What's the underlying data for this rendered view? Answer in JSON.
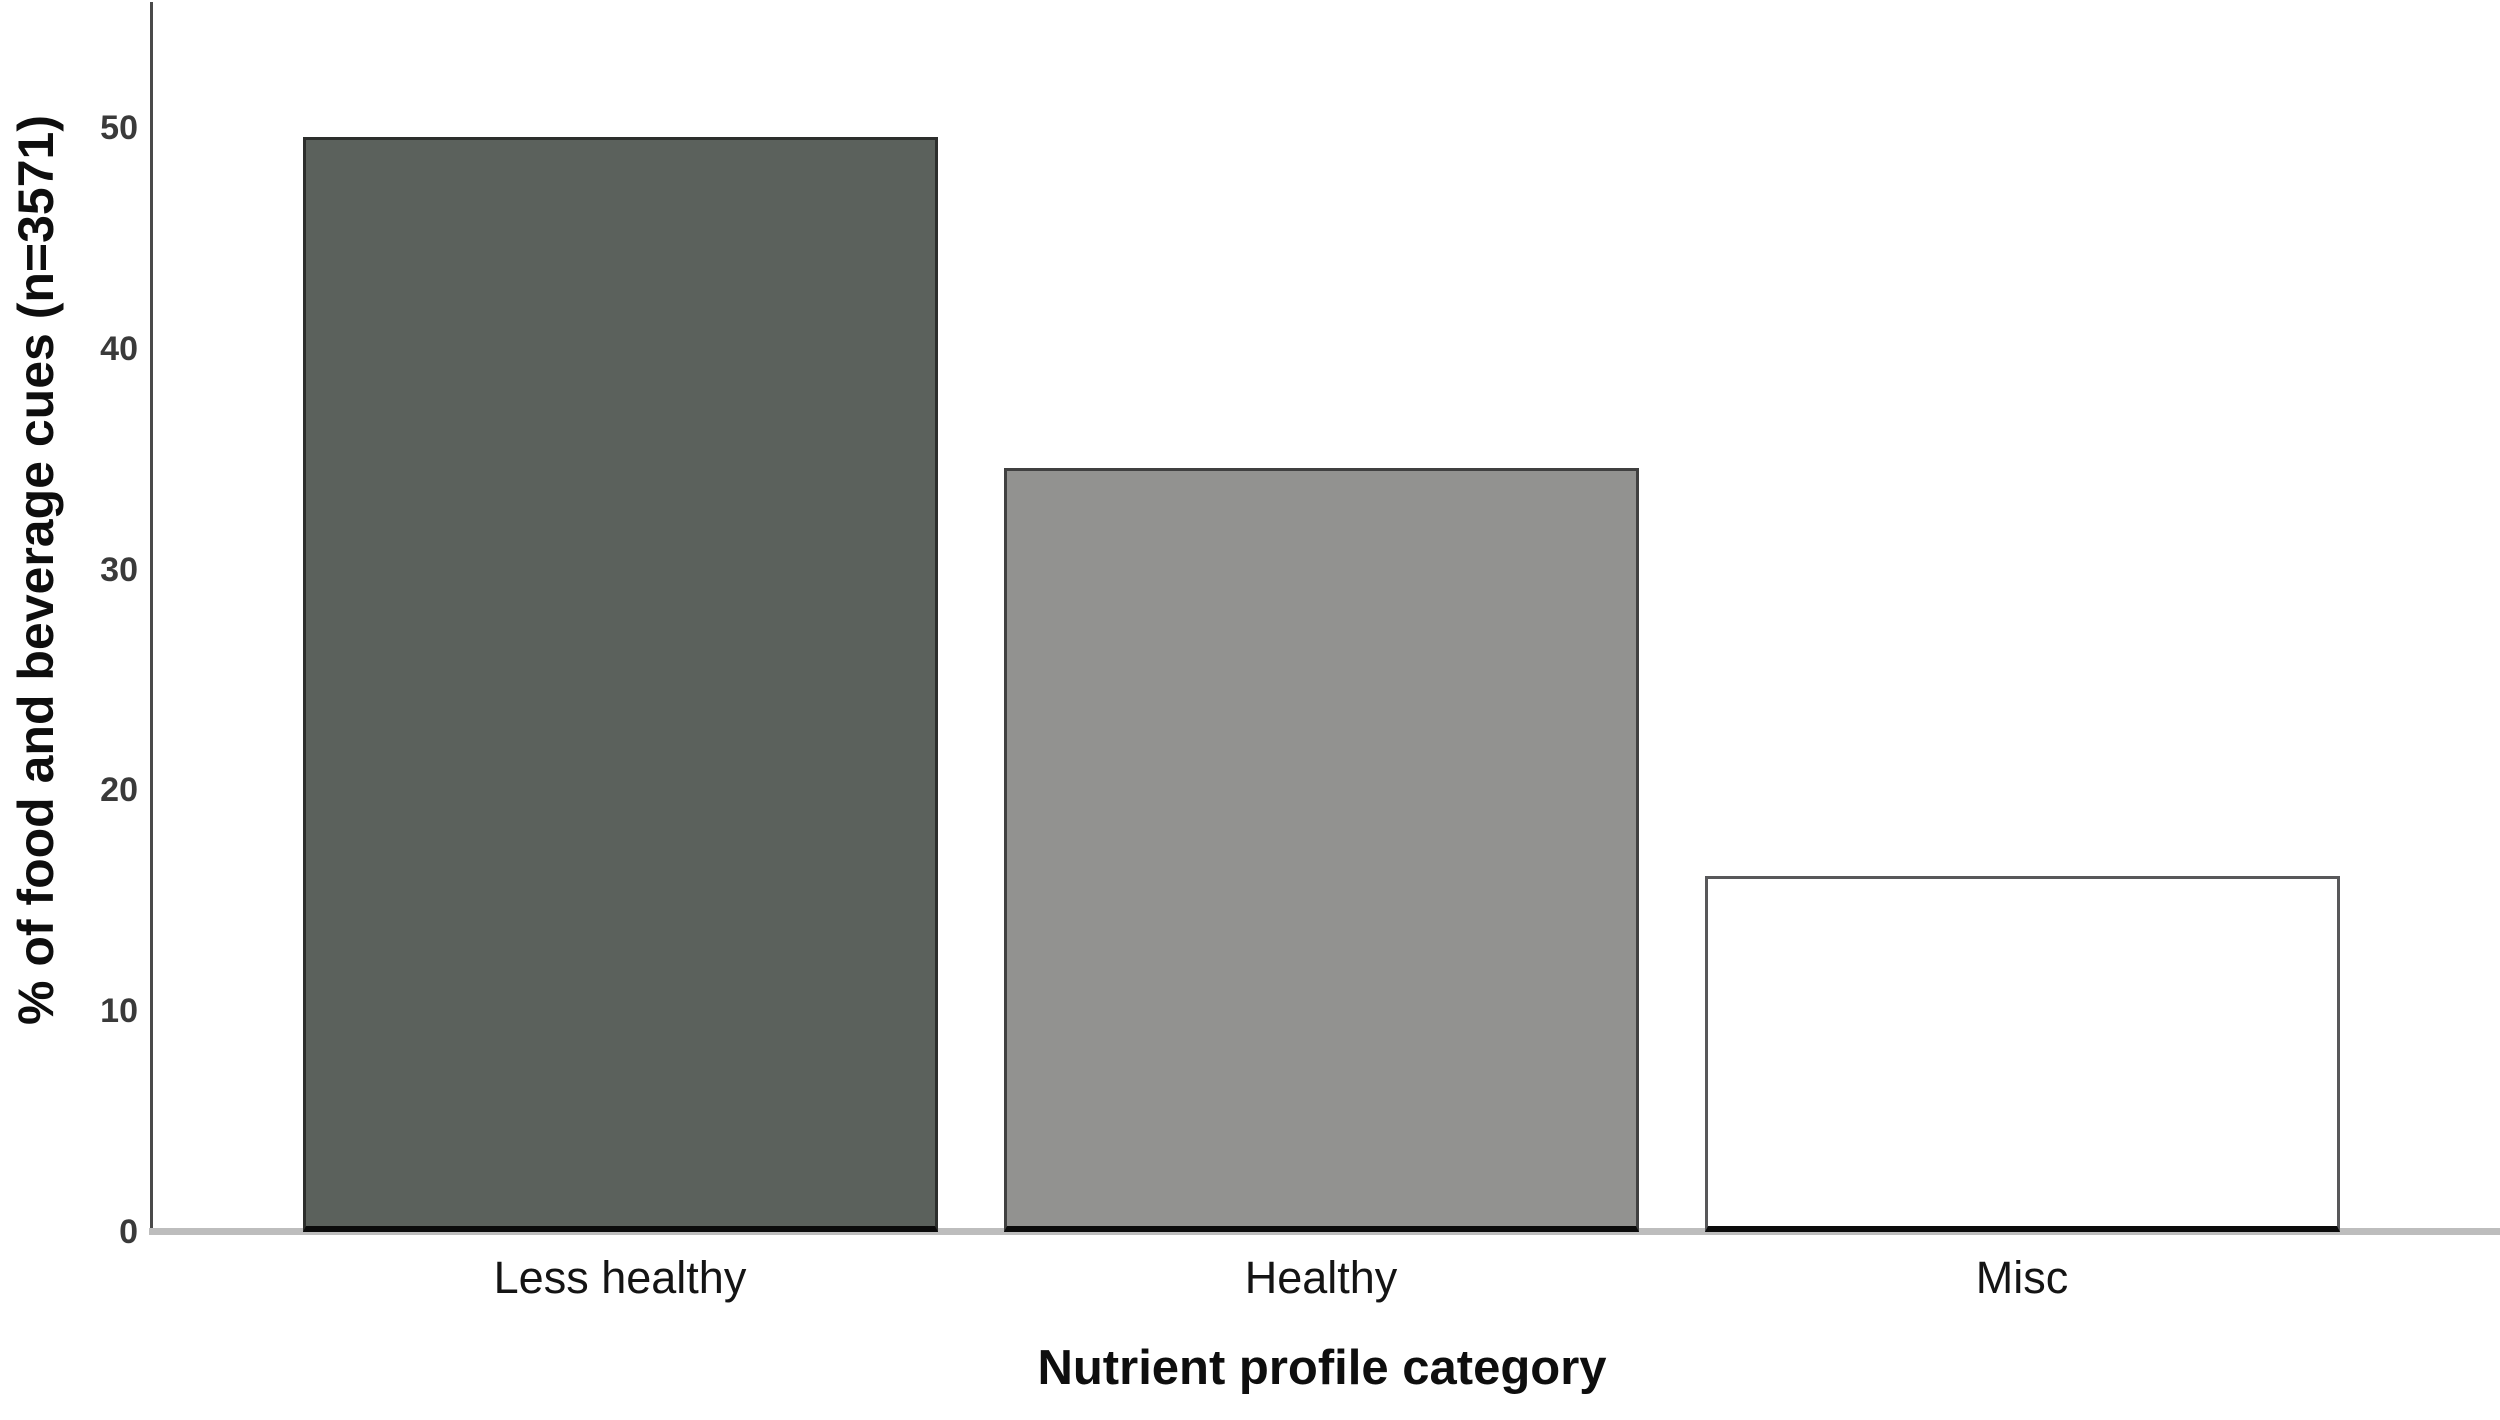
{
  "chart_data": {
    "type": "bar",
    "title": "",
    "xlabel": "Nutrient profile category",
    "ylabel": "% of food and beverage cues (n=3571)",
    "categories": [
      "Less healthy",
      "Healthy",
      "Misc"
    ],
    "values": [
      49.6,
      34.6,
      16.1
    ],
    "yticks": [
      0,
      10,
      20,
      30,
      40,
      50
    ],
    "ylim": [
      0,
      55.7
    ],
    "grid": false,
    "legend_position": "none",
    "bar_fill_colors": [
      "#5b615c",
      "#929290",
      "#ffffff"
    ],
    "bar_border_colors": [
      "#2c2e2c",
      "#404040",
      "#58585a"
    ],
    "axis_line_color": "#4a4a4a",
    "baseline_color": "#bdbdbd",
    "tick_label_color": "#3a3a3a",
    "category_label_color": "#141414"
  }
}
